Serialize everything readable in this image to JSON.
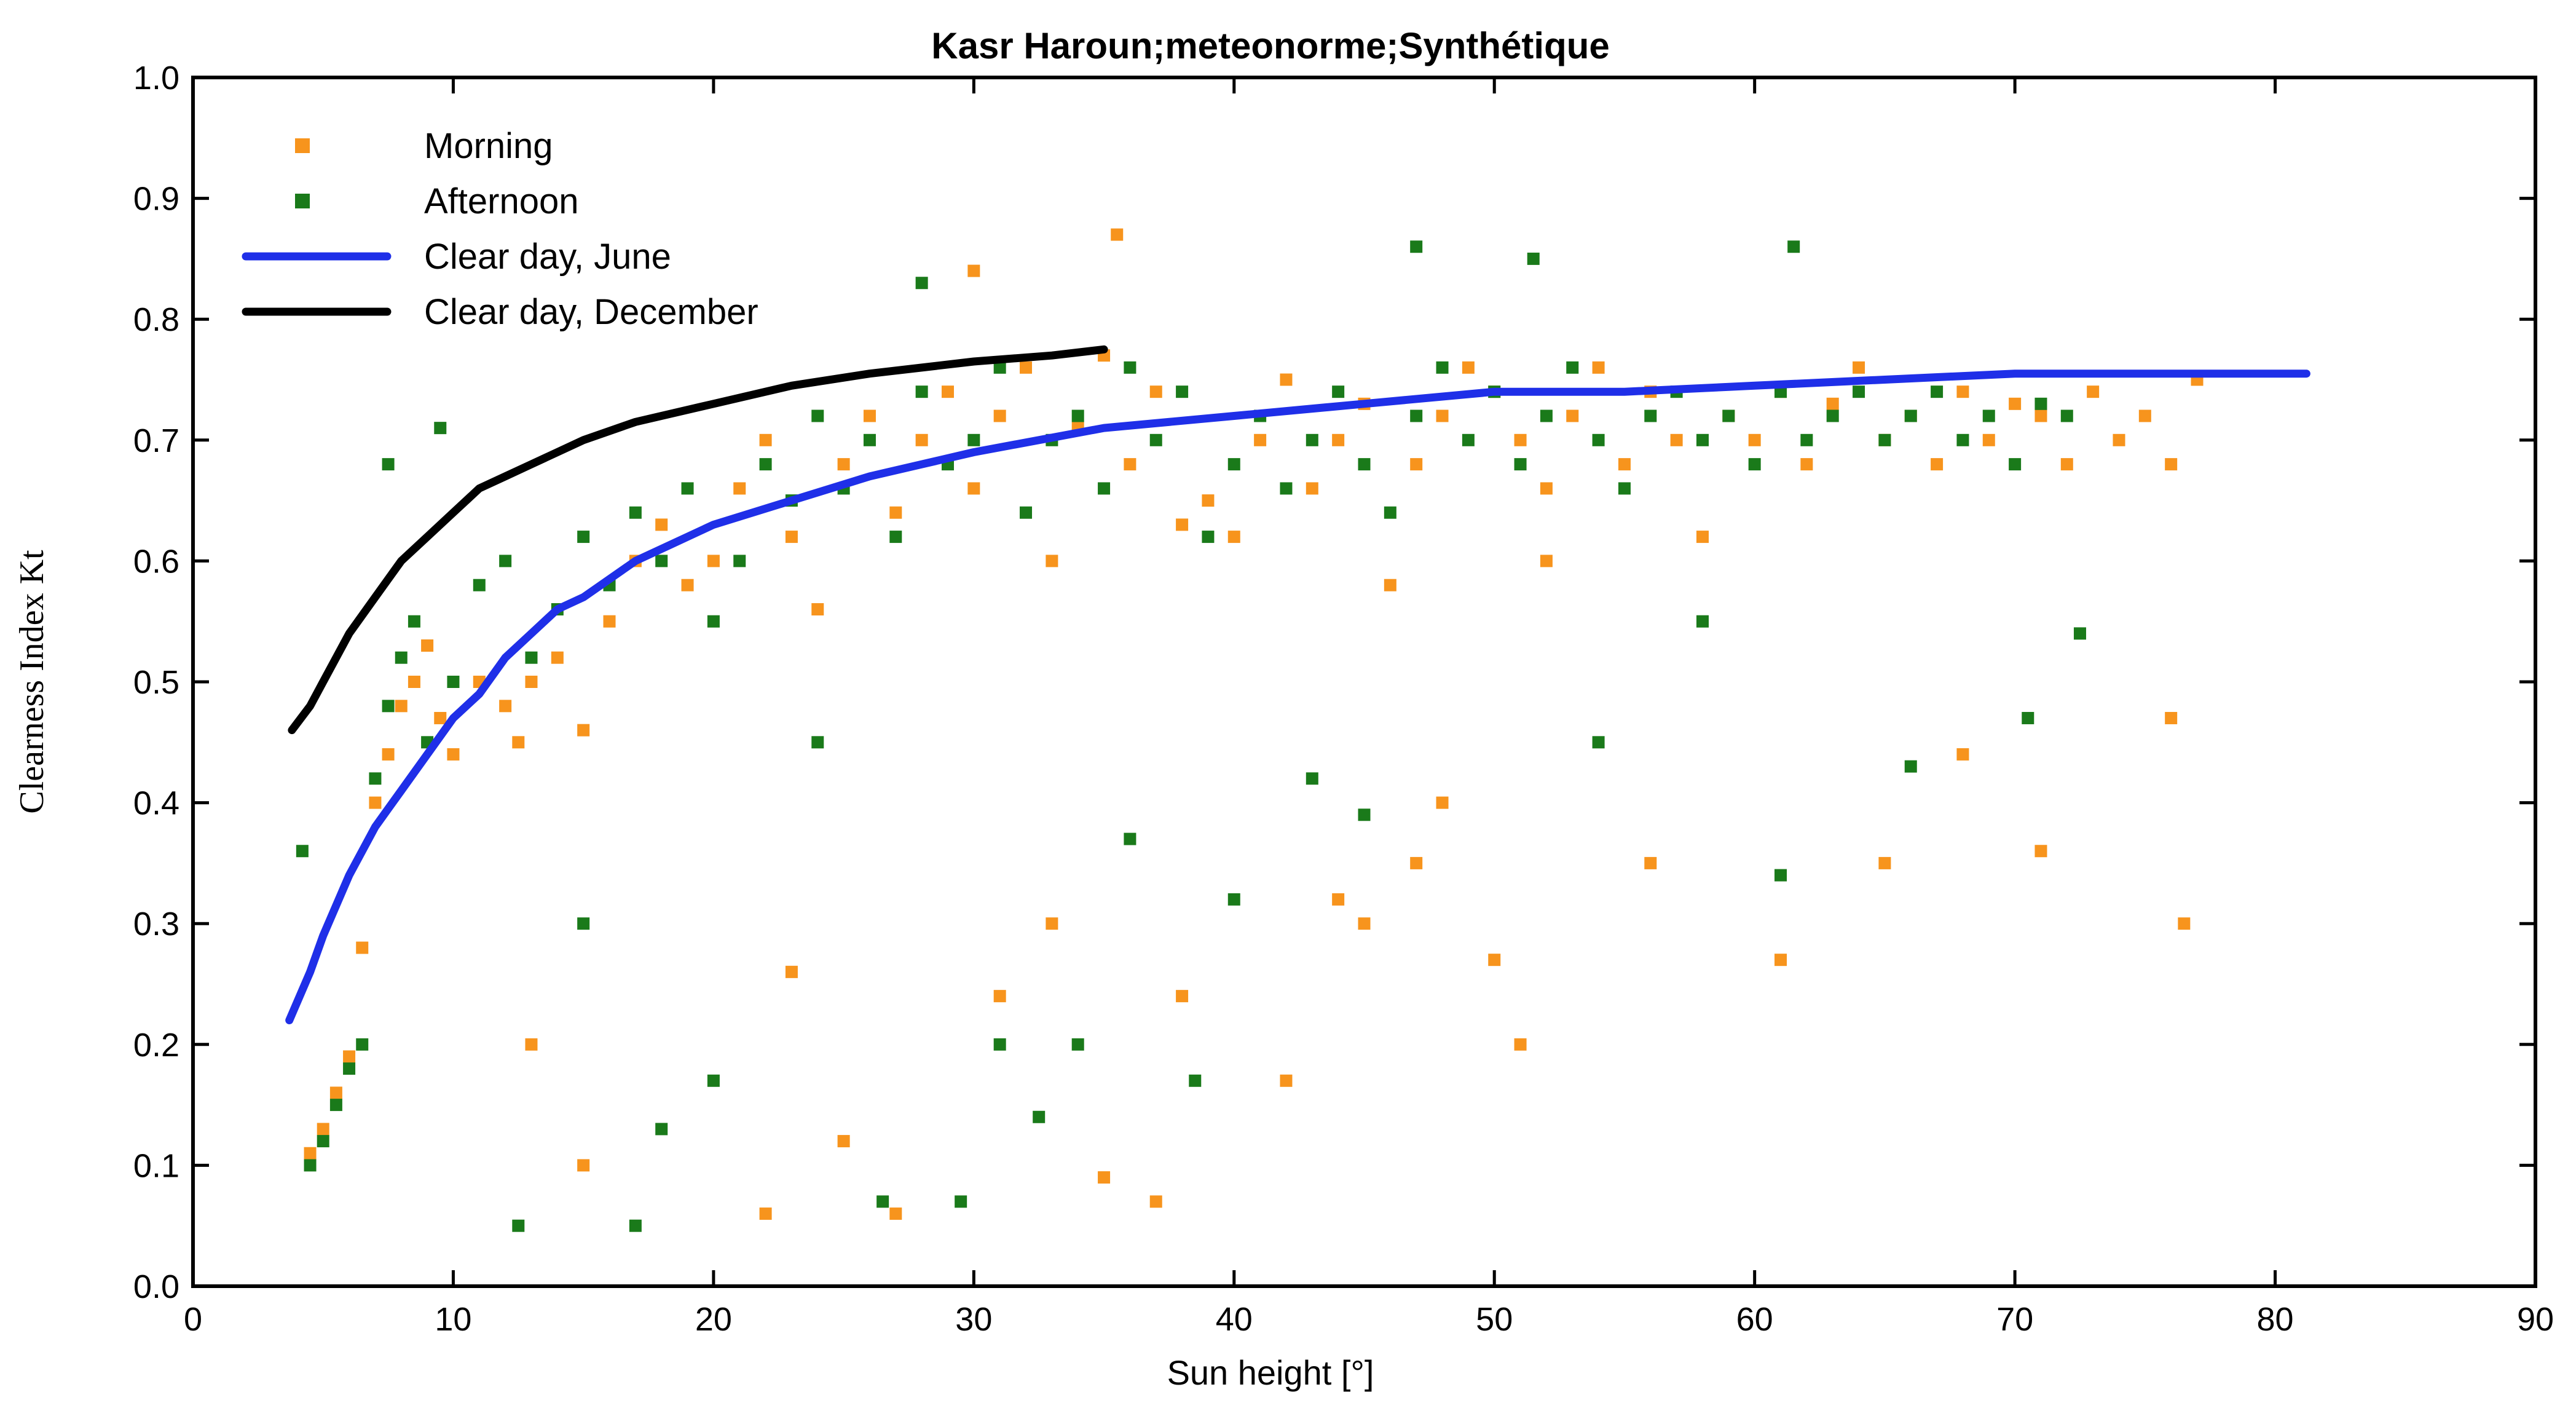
{
  "chart_data": {
    "type": "scatter",
    "title": "Kasr Haroun;meteonorme;Synthétique",
    "xlabel": "Sun height [°]",
    "ylabel": "Clearness Index Kt",
    "xlim": [
      0,
      90
    ],
    "ylim": [
      0.0,
      1.0
    ],
    "x_ticks": [
      "0",
      "10",
      "20",
      "30",
      "40",
      "50",
      "60",
      "70",
      "80",
      "90"
    ],
    "y_ticks": [
      "0.0",
      "0.1",
      "0.2",
      "0.3",
      "0.4",
      "0.5",
      "0.6",
      "0.7",
      "0.8",
      "0.9",
      "1.0"
    ],
    "grid": false,
    "legend_position": "top-left",
    "series": [
      {
        "name": "Morning",
        "kind": "scatter",
        "color": "#f7941d",
        "points": [
          [
            4.5,
            0.11
          ],
          [
            5.0,
            0.13
          ],
          [
            5.5,
            0.16
          ],
          [
            6.0,
            0.19
          ],
          [
            6.5,
            0.28
          ],
          [
            7.0,
            0.4
          ],
          [
            7.5,
            0.44
          ],
          [
            8.0,
            0.48
          ],
          [
            8.5,
            0.5
          ],
          [
            9.0,
            0.53
          ],
          [
            9.5,
            0.47
          ],
          [
            10,
            0.44
          ],
          [
            11,
            0.5
          ],
          [
            12,
            0.48
          ],
          [
            12.5,
            0.45
          ],
          [
            13,
            0.5
          ],
          [
            14,
            0.52
          ],
          [
            15,
            0.46
          ],
          [
            16,
            0.55
          ],
          [
            17,
            0.6
          ],
          [
            18,
            0.63
          ],
          [
            19,
            0.58
          ],
          [
            20,
            0.6
          ],
          [
            21,
            0.66
          ],
          [
            22,
            0.7
          ],
          [
            23,
            0.62
          ],
          [
            24,
            0.56
          ],
          [
            25,
            0.68
          ],
          [
            26,
            0.72
          ],
          [
            27,
            0.64
          ],
          [
            28,
            0.7
          ],
          [
            29,
            0.74
          ],
          [
            30,
            0.66
          ],
          [
            31,
            0.72
          ],
          [
            32,
            0.76
          ],
          [
            33,
            0.6
          ],
          [
            34,
            0.71
          ],
          [
            35,
            0.77
          ],
          [
            36,
            0.68
          ],
          [
            37,
            0.74
          ],
          [
            38,
            0.63
          ],
          [
            39,
            0.65
          ],
          [
            40,
            0.62
          ],
          [
            41,
            0.7
          ],
          [
            42,
            0.75
          ],
          [
            43,
            0.66
          ],
          [
            44,
            0.7
          ],
          [
            45,
            0.73
          ],
          [
            46,
            0.58
          ],
          [
            47,
            0.68
          ],
          [
            48,
            0.72
          ],
          [
            49,
            0.76
          ],
          [
            50,
            0.74
          ],
          [
            51,
            0.7
          ],
          [
            52,
            0.66
          ],
          [
            53,
            0.72
          ],
          [
            54,
            0.76
          ],
          [
            55,
            0.68
          ],
          [
            56,
            0.74
          ],
          [
            57,
            0.7
          ],
          [
            58,
            0.62
          ],
          [
            59,
            0.72
          ],
          [
            60,
            0.7
          ],
          [
            61,
            0.74
          ],
          [
            62,
            0.68
          ],
          [
            63,
            0.73
          ],
          [
            64,
            0.76
          ],
          [
            65,
            0.7
          ],
          [
            66,
            0.72
          ],
          [
            67,
            0.68
          ],
          [
            68,
            0.74
          ],
          [
            69,
            0.7
          ],
          [
            70,
            0.73
          ],
          [
            71,
            0.72
          ],
          [
            72,
            0.68
          ],
          [
            73,
            0.74
          ],
          [
            74,
            0.7
          ],
          [
            75,
            0.72
          ],
          [
            76,
            0.68
          ],
          [
            77,
            0.75
          ],
          [
            13,
            0.2
          ],
          [
            15,
            0.1
          ],
          [
            22,
            0.06
          ],
          [
            23,
            0.26
          ],
          [
            25,
            0.12
          ],
          [
            27,
            0.06
          ],
          [
            31,
            0.24
          ],
          [
            35,
            0.09
          ],
          [
            37,
            0.07
          ],
          [
            44,
            0.32
          ],
          [
            45,
            0.3
          ],
          [
            48,
            0.4
          ],
          [
            50,
            0.27
          ],
          [
            51,
            0.2
          ],
          [
            61,
            0.27
          ],
          [
            71,
            0.36
          ],
          [
            76.5,
            0.3
          ],
          [
            76,
            0.47
          ],
          [
            30,
            0.84
          ],
          [
            35.5,
            0.87
          ],
          [
            52,
            0.6
          ],
          [
            33,
            0.3
          ],
          [
            38,
            0.24
          ],
          [
            42,
            0.17
          ],
          [
            47,
            0.35
          ],
          [
            56,
            0.35
          ],
          [
            65,
            0.35
          ],
          [
            68,
            0.44
          ]
        ]
      },
      {
        "name": "Afternoon",
        "kind": "scatter",
        "color": "#1a7a1a",
        "points": [
          [
            4.5,
            0.1
          ],
          [
            5.0,
            0.12
          ],
          [
            5.5,
            0.15
          ],
          [
            6.0,
            0.18
          ],
          [
            6.5,
            0.2
          ],
          [
            7.0,
            0.42
          ],
          [
            7.5,
            0.48
          ],
          [
            8.0,
            0.52
          ],
          [
            8.5,
            0.55
          ],
          [
            9.0,
            0.45
          ],
          [
            10,
            0.5
          ],
          [
            11,
            0.58
          ],
          [
            12,
            0.6
          ],
          [
            13,
            0.52
          ],
          [
            14,
            0.56
          ],
          [
            15,
            0.62
          ],
          [
            16,
            0.58
          ],
          [
            17,
            0.64
          ],
          [
            18,
            0.6
          ],
          [
            19,
            0.66
          ],
          [
            20,
            0.55
          ],
          [
            21,
            0.6
          ],
          [
            22,
            0.68
          ],
          [
            23,
            0.65
          ],
          [
            24,
            0.72
          ],
          [
            25,
            0.66
          ],
          [
            26,
            0.7
          ],
          [
            27,
            0.62
          ],
          [
            28,
            0.74
          ],
          [
            29,
            0.68
          ],
          [
            30,
            0.7
          ],
          [
            31,
            0.76
          ],
          [
            32,
            0.64
          ],
          [
            33,
            0.7
          ],
          [
            34,
            0.72
          ],
          [
            35,
            0.66
          ],
          [
            36,
            0.76
          ],
          [
            37,
            0.7
          ],
          [
            38,
            0.74
          ],
          [
            39,
            0.62
          ],
          [
            40,
            0.68
          ],
          [
            41,
            0.72
          ],
          [
            42,
            0.66
          ],
          [
            43,
            0.7
          ],
          [
            44,
            0.74
          ],
          [
            45,
            0.68
          ],
          [
            46,
            0.64
          ],
          [
            47,
            0.72
          ],
          [
            48,
            0.76
          ],
          [
            49,
            0.7
          ],
          [
            50,
            0.74
          ],
          [
            51,
            0.68
          ],
          [
            52,
            0.72
          ],
          [
            53,
            0.76
          ],
          [
            54,
            0.7
          ],
          [
            55,
            0.66
          ],
          [
            56,
            0.72
          ],
          [
            57,
            0.74
          ],
          [
            58,
            0.7
          ],
          [
            59,
            0.72
          ],
          [
            60,
            0.68
          ],
          [
            61,
            0.74
          ],
          [
            62,
            0.7
          ],
          [
            63,
            0.72
          ],
          [
            64,
            0.74
          ],
          [
            65,
            0.7
          ],
          [
            66,
            0.72
          ],
          [
            67,
            0.74
          ],
          [
            68,
            0.7
          ],
          [
            69,
            0.72
          ],
          [
            70,
            0.68
          ],
          [
            71,
            0.73
          ],
          [
            72,
            0.72
          ],
          [
            4.2,
            0.36
          ],
          [
            7.5,
            0.68
          ],
          [
            9.5,
            0.71
          ],
          [
            12.5,
            0.05
          ],
          [
            17,
            0.05
          ],
          [
            18,
            0.13
          ],
          [
            20,
            0.17
          ],
          [
            26.5,
            0.07
          ],
          [
            29.5,
            0.07
          ],
          [
            31,
            0.2
          ],
          [
            32.5,
            0.14
          ],
          [
            34,
            0.2
          ],
          [
            38.5,
            0.17
          ],
          [
            40,
            0.32
          ],
          [
            45,
            0.39
          ],
          [
            47,
            0.86
          ],
          [
            51.5,
            0.85
          ],
          [
            61.5,
            0.86
          ],
          [
            28,
            0.83
          ],
          [
            58,
            0.55
          ],
          [
            66,
            0.43
          ],
          [
            70.5,
            0.47
          ],
          [
            72.5,
            0.54
          ],
          [
            61,
            0.34
          ],
          [
            54,
            0.45
          ],
          [
            43,
            0.42
          ],
          [
            36,
            0.37
          ],
          [
            24,
            0.45
          ],
          [
            15,
            0.3
          ]
        ]
      },
      {
        "name": "Clear day, June",
        "kind": "line",
        "color": "#1f2fe8",
        "points": [
          [
            3.7,
            0.22
          ],
          [
            4.5,
            0.26
          ],
          [
            5,
            0.29
          ],
          [
            6,
            0.34
          ],
          [
            7,
            0.38
          ],
          [
            8,
            0.41
          ],
          [
            9,
            0.44
          ],
          [
            10,
            0.47
          ],
          [
            11,
            0.49
          ],
          [
            12,
            0.52
          ],
          [
            13,
            0.54
          ],
          [
            14,
            0.56
          ],
          [
            15,
            0.57
          ],
          [
            17,
            0.6
          ],
          [
            20,
            0.63
          ],
          [
            23,
            0.65
          ],
          [
            26,
            0.67
          ],
          [
            30,
            0.69
          ],
          [
            35,
            0.71
          ],
          [
            40,
            0.72
          ],
          [
            45,
            0.73
          ],
          [
            50,
            0.74
          ],
          [
            55,
            0.74
          ],
          [
            60,
            0.745
          ],
          [
            65,
            0.75
          ],
          [
            70,
            0.755
          ],
          [
            75,
            0.755
          ],
          [
            81.2,
            0.755
          ]
        ]
      },
      {
        "name": "Clear day, December",
        "kind": "line",
        "color": "#000000",
        "points": [
          [
            3.8,
            0.46
          ],
          [
            4.5,
            0.48
          ],
          [
            5,
            0.5
          ],
          [
            6,
            0.54
          ],
          [
            7,
            0.57
          ],
          [
            8,
            0.6
          ],
          [
            9,
            0.62
          ],
          [
            10,
            0.64
          ],
          [
            11,
            0.66
          ],
          [
            12,
            0.67
          ],
          [
            13,
            0.68
          ],
          [
            14,
            0.69
          ],
          [
            15,
            0.7
          ],
          [
            17,
            0.715
          ],
          [
            20,
            0.73
          ],
          [
            23,
            0.745
          ],
          [
            26,
            0.755
          ],
          [
            30,
            0.765
          ],
          [
            33,
            0.77
          ],
          [
            35,
            0.775
          ]
        ]
      }
    ]
  },
  "colors": {
    "background": "#ffffff",
    "axes": "#000000"
  }
}
